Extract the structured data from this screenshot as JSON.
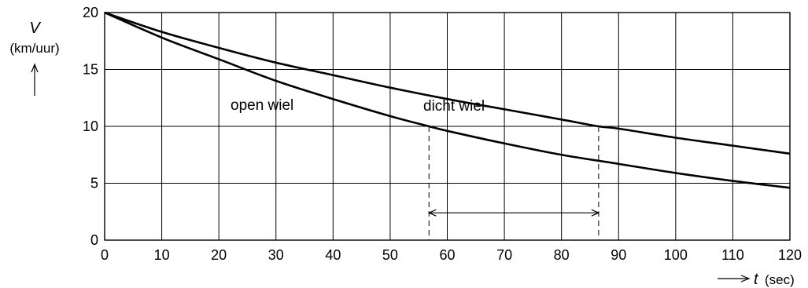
{
  "chart_data": {
    "type": "line",
    "xlabel": {
      "symbol": "t",
      "unit": "(sec)"
    },
    "ylabel": {
      "symbol": "V",
      "unit": "(km/uur)"
    },
    "xlim": [
      0,
      120
    ],
    "ylim": [
      0,
      20
    ],
    "x_ticks": [
      0,
      10,
      20,
      30,
      40,
      50,
      60,
      70,
      80,
      90,
      100,
      110,
      120
    ],
    "y_ticks": [
      0,
      5,
      10,
      15,
      20
    ],
    "grid": true,
    "series": [
      {
        "name": "dicht wiel",
        "x": [
          0,
          10,
          20,
          30,
          40,
          50,
          60,
          70,
          80,
          86.5,
          90,
          100,
          110,
          120
        ],
        "y": [
          20,
          18.3,
          16.9,
          15.6,
          14.5,
          13.4,
          12.4,
          11.5,
          10.6,
          10.0,
          9.8,
          9.0,
          8.3,
          7.6
        ]
      },
      {
        "name": "open wiel",
        "x": [
          0,
          10,
          20,
          30,
          40,
          50,
          56.8,
          60,
          70,
          80,
          90,
          100,
          110,
          120
        ],
        "y": [
          20,
          17.8,
          15.9,
          14.0,
          12.4,
          10.9,
          10.0,
          9.6,
          8.5,
          7.5,
          6.7,
          5.9,
          5.2,
          4.6
        ]
      }
    ],
    "annotations": {
      "level_v": 10,
      "dashed_x": [
        56.8,
        86.5
      ],
      "arrow_y": 2.4
    }
  }
}
